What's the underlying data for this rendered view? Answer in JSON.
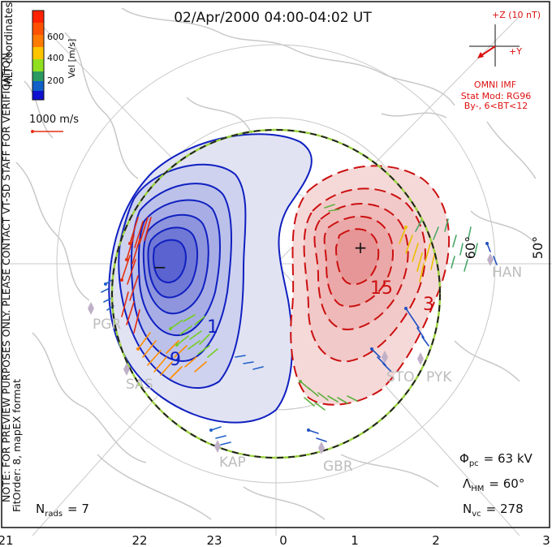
{
  "title": "02/Apr/2000 04:00-04:02 UT",
  "coord_label": "MLT coordinates",
  "colorbar": {
    "label": "Vel [m/s]",
    "ticks": [
      "600",
      "400",
      "200"
    ],
    "colors": [
      "#ff2200",
      "#ff7a00",
      "#ffc400",
      "#90e020",
      "#2a9a60",
      "#2060c8",
      "#1010d0"
    ]
  },
  "vector_scale_label": "1000 m/s",
  "imf": {
    "bz_label": "+Z (10 nT)",
    "by_label": "+Y",
    "source": "OMNI IMF",
    "model": "Stat Mod: RG96",
    "condition": "By-, 6<BT<12"
  },
  "latitude_labels": [
    "60°",
    "50°"
  ],
  "stations": [
    "HAN",
    "PGR",
    "SAS",
    "KAP",
    "GBR",
    "STO",
    "PYK"
  ],
  "contour_labels": [
    "15",
    "3",
    "1",
    "9"
  ],
  "extremes": {
    "min_symbol": "−",
    "max_symbol": "+"
  },
  "side_note_1": "NOTE: FOR PREVIEW PURPOSES ONLY. PLEASE CONTACT VT-SD STAFF FOR VERIFICATION.",
  "side_note_2": "FitOrder: 8, mapEX format",
  "stats": {
    "phi_symbol": "Φ",
    "phi_sub": "pc",
    "phi_value": "= 63 kV",
    "lambda_symbol": "Λ",
    "lambda_sub": "HM",
    "lambda_value": "= 60°",
    "nvc_symbol": "N",
    "nvc_sub": "vc",
    "nvc_value": "= 278",
    "nrads_symbol": "N",
    "nrads_sub": "rads",
    "nrads_value": "= 7"
  },
  "mlt_ticks": [
    "21",
    "22",
    "23",
    "0",
    "1",
    "2",
    "3"
  ],
  "colors": {
    "negative": "#1020c0",
    "positive": "#cc1010",
    "imf": "#dd1111",
    "land": "#c8c8c8",
    "boundary_a": "#222222",
    "boundary_b": "#9ad23c"
  }
}
